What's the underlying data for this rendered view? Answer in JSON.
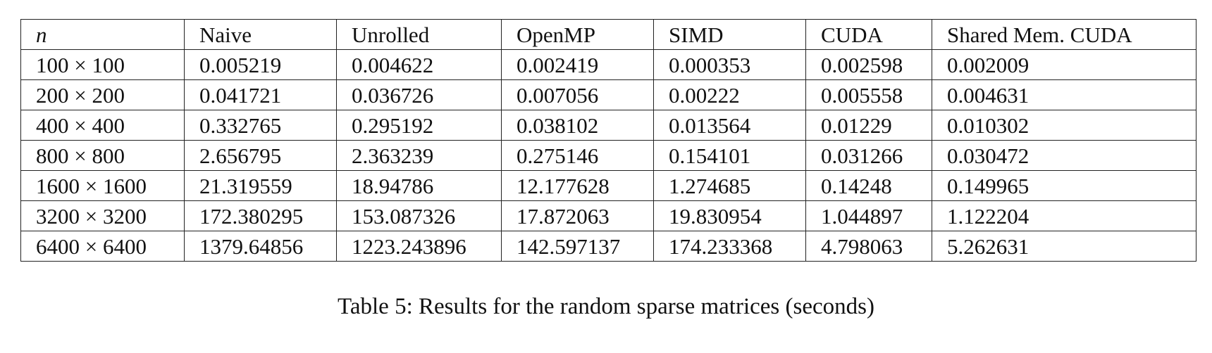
{
  "table": {
    "headers": [
      "n",
      "Naive",
      "Unrolled",
      "OpenMP",
      "SIMD",
      "CUDA",
      "Shared Mem. CUDA"
    ],
    "rows": [
      [
        "100 × 100",
        "0.005219",
        "0.004622",
        "0.002419",
        "0.000353",
        "0.002598",
        "0.002009"
      ],
      [
        "200 × 200",
        "0.041721",
        "0.036726",
        "0.007056",
        "0.00222",
        "0.005558",
        "0.004631"
      ],
      [
        "400 × 400",
        "0.332765",
        "0.295192",
        "0.038102",
        "0.013564",
        "0.01229",
        "0.010302"
      ],
      [
        "800 × 800",
        "2.656795",
        "2.363239",
        "0.275146",
        "0.154101",
        "0.031266",
        "0.030472"
      ],
      [
        "1600 × 1600",
        "21.319559",
        "18.94786",
        "12.177628",
        "1.274685",
        "0.14248",
        "0.149965"
      ],
      [
        "3200 × 3200",
        "172.380295",
        "153.087326",
        "17.872063",
        "19.830954",
        "1.044897",
        "1.122204"
      ],
      [
        "6400 × 6400",
        "1379.64856",
        "1223.243896",
        "142.597137",
        "174.233368",
        "4.798063",
        "5.262631"
      ]
    ]
  },
  "caption": {
    "label": "Table 5:",
    "text": "Results for the random sparse matrices (seconds)"
  }
}
